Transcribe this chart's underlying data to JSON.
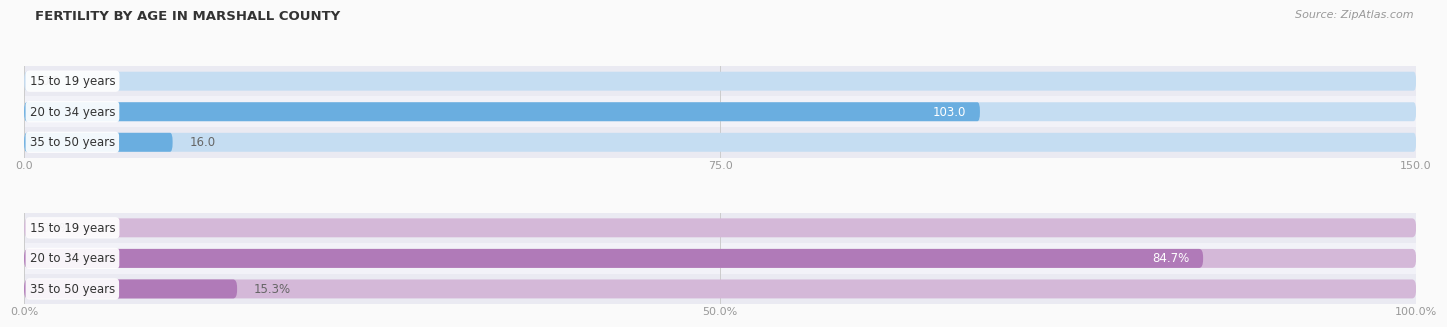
{
  "title": "FERTILITY BY AGE IN MARSHALL COUNTY",
  "source": "Source: ZipAtlas.com",
  "top_chart": {
    "categories": [
      "15 to 19 years",
      "20 to 34 years",
      "35 to 50 years"
    ],
    "values": [
      0.0,
      103.0,
      16.0
    ],
    "bar_color_main": "#6aaee0",
    "bar_color_light": "#c5ddf2",
    "xlim": [
      0,
      150
    ],
    "xticks": [
      0.0,
      75.0,
      150.0
    ],
    "value_pct": false,
    "value_label_inside": [
      false,
      true,
      false
    ]
  },
  "bottom_chart": {
    "categories": [
      "15 to 19 years",
      "20 to 34 years",
      "35 to 50 years"
    ],
    "values": [
      0.0,
      84.7,
      15.3
    ],
    "bar_color_main": "#b07ab8",
    "bar_color_light": "#d4b8d8",
    "xlim": [
      0,
      100
    ],
    "xticks": [
      0.0,
      50.0,
      100.0
    ],
    "value_pct": true,
    "value_label_inside": [
      false,
      true,
      false
    ]
  },
  "value_color_outside": "#666666",
  "value_color_inside": "#ffffff",
  "bar_height": 0.62,
  "strip_colors": [
    "#eaeaf2",
    "#f2f2f8",
    "#eaeaf2"
  ],
  "axis_tick_color": "#999999",
  "label_bg_color": "#ffffff",
  "fig_bg_color": "#fafafa"
}
